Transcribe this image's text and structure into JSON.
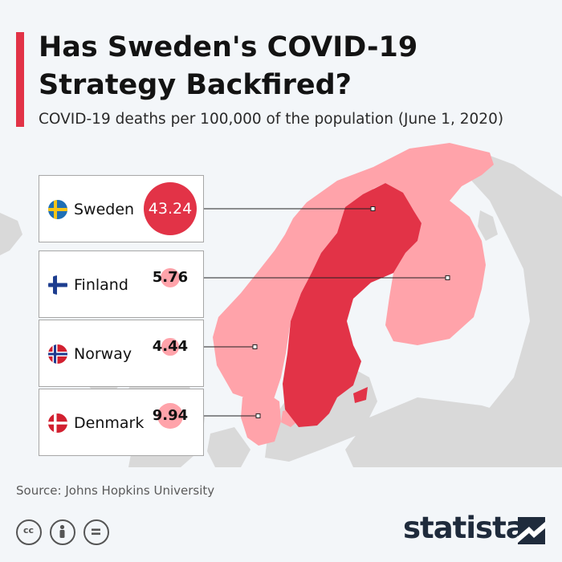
{
  "header": {
    "title_lines": [
      "Has Sweden's COVID-19",
      "Strategy Backfired?"
    ],
    "subtitle": "COVID-19 deaths per 100,000 of the population (June 1, 2020)"
  },
  "chart_data": {
    "type": "bubble-map",
    "title": "Has Sweden's COVID-19 Strategy Backfired?",
    "subtitle": "COVID-19 deaths per 100,000 of the population (June 1, 2020)",
    "categories": [
      "Sweden",
      "Finland",
      "Norway",
      "Denmark"
    ],
    "values": [
      43.24,
      5.76,
      4.44,
      9.94
    ],
    "labels": [
      "43.24",
      "5.76",
      "4.44",
      "9.94"
    ],
    "unit": "deaths per 100,000 population",
    "colors": {
      "highlight": "#e23347",
      "other": "#ffa3aa",
      "background_land": "#d9d9d9",
      "sea": "#f3f6f9"
    }
  },
  "footer": {
    "source": "Source: Johns Hopkins University",
    "license_icons": [
      "cc-icon",
      "attribution-icon",
      "no-derivatives-icon"
    ],
    "brand": "statista"
  }
}
